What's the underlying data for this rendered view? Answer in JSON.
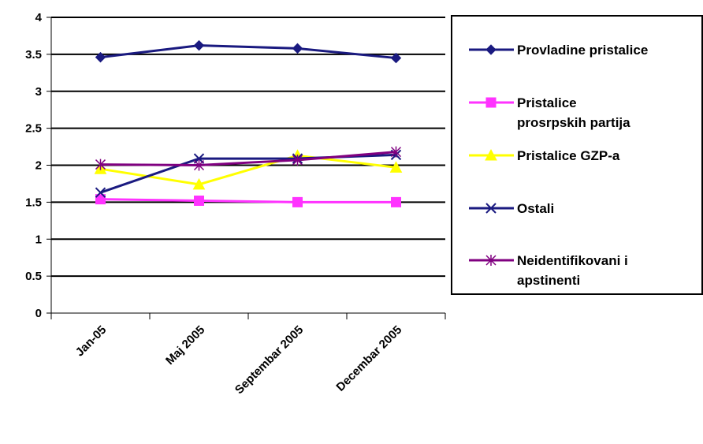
{
  "chart_data": {
    "type": "line",
    "title": "",
    "xlabel": "",
    "ylabel": "",
    "categories": [
      "Jan-05",
      "Maj 2005",
      "Septembar 2005",
      "Decembar 2005"
    ],
    "ylim": [
      0,
      4
    ],
    "yticks": [
      "0",
      "0.5",
      "1",
      "1.5",
      "2",
      "2.5",
      "3",
      "3.5",
      "4"
    ],
    "grid": "horizontal",
    "legend_position": "right",
    "series": [
      {
        "name": "Provladine pristalice",
        "values": [
          3.46,
          3.62,
          3.58,
          3.45
        ],
        "color": "#1a1a80",
        "marker": "diamond"
      },
      {
        "name": "Pristalice prosrpskih partija",
        "legend_lines": [
          "Pristalice",
          "prosrpskih partija"
        ],
        "values": [
          1.54,
          1.52,
          1.5,
          1.5
        ],
        "color": "#ff33ff",
        "marker": "square"
      },
      {
        "name": "Pristalice GZP-a",
        "values": [
          1.95,
          1.74,
          2.13,
          1.97
        ],
        "color": "#ffff00",
        "marker": "triangle"
      },
      {
        "name": "Ostali",
        "values": [
          1.63,
          2.09,
          2.09,
          2.14
        ],
        "color": "#1a1a80",
        "marker": "x"
      },
      {
        "name": "Neidentifikovani i apstinenti",
        "legend_lines": [
          "Neidentifikovani i",
          "apstinenti"
        ],
        "values": [
          2.01,
          2.0,
          2.07,
          2.18
        ],
        "color": "#800080",
        "marker": "star"
      }
    ]
  }
}
